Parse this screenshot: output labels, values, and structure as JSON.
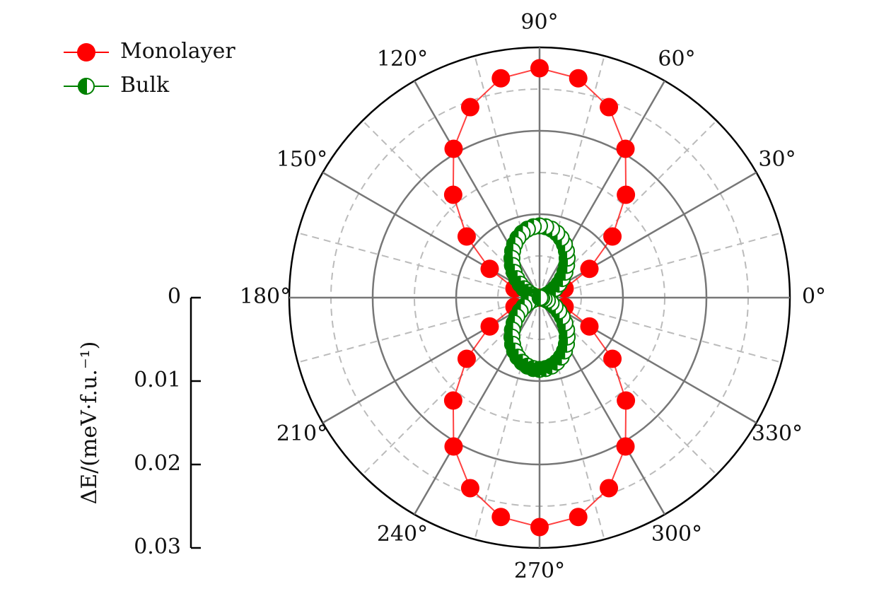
{
  "chart_data": {
    "type": "polar",
    "rlabel": "ΔE/(meV·f.u.⁻¹)",
    "rlim": [
      0,
      0.03
    ],
    "rticks": [
      0,
      0.01,
      0.02,
      0.03
    ],
    "rticks_minor": [
      0.005,
      0.015,
      0.025
    ],
    "thetaticks": [
      {
        "value": 0,
        "label": "0°"
      },
      {
        "value": 30,
        "label": "30°"
      },
      {
        "value": 60,
        "label": "60°"
      },
      {
        "value": 90,
        "label": "90°"
      },
      {
        "value": 120,
        "label": "120°"
      },
      {
        "value": 150,
        "label": "150°"
      },
      {
        "value": 180,
        "label": "180°"
      },
      {
        "value": 210,
        "label": "210°"
      },
      {
        "value": 240,
        "label": "240°"
      },
      {
        "value": 270,
        "label": "270°"
      },
      {
        "value": 300,
        "label": "300°"
      },
      {
        "value": 330,
        "label": "330°"
      }
    ],
    "thetaticks_minor": [
      15,
      45,
      75,
      105,
      135,
      165,
      195,
      225,
      255,
      285,
      315,
      345
    ],
    "grid": true,
    "legend": "top-left",
    "series": [
      {
        "name": "Monolayer",
        "color": "#ff0000",
        "marker": "filled",
        "theta": [
          0,
          10,
          20,
          30,
          40,
          50,
          60,
          70,
          80,
          90,
          100,
          110,
          120,
          130,
          140,
          150,
          160,
          170,
          180,
          190,
          200,
          210,
          220,
          230,
          240,
          250,
          260,
          270,
          280,
          290,
          300,
          310,
          320,
          330,
          340,
          350
        ],
        "values": [
          0,
          0.0008,
          0.0032,
          0.0069,
          0.0114,
          0.0161,
          0.0206,
          0.0243,
          0.0267,
          0.0275,
          0.0267,
          0.0243,
          0.0206,
          0.0161,
          0.0114,
          0.0069,
          0.0032,
          0.0008,
          0,
          0.0008,
          0.0032,
          0.0069,
          0.0114,
          0.0161,
          0.0206,
          0.0243,
          0.0267,
          0.0275,
          0.0267,
          0.0243,
          0.0206,
          0.0161,
          0.0114,
          0.0069,
          0.0032,
          0.0008
        ]
      },
      {
        "name": "Bulk",
        "color": "#008000",
        "marker": "half",
        "theta": [
          0,
          5,
          10,
          15,
          20,
          25,
          30,
          35,
          40,
          45,
          50,
          55,
          60,
          65,
          70,
          75,
          80,
          85,
          90,
          95,
          100,
          105,
          110,
          115,
          120,
          125,
          130,
          135,
          140,
          145,
          150,
          155,
          160,
          165,
          170,
          175,
          180,
          185,
          190,
          195,
          200,
          205,
          210,
          215,
          220,
          225,
          230,
          235,
          240,
          245,
          250,
          255,
          260,
          265,
          270,
          275,
          280,
          285,
          290,
          295,
          300,
          305,
          310,
          315,
          320,
          325,
          330,
          335,
          340,
          345,
          350,
          355
        ],
        "values": [
          0,
          7e-05,
          0.00026,
          0.00058,
          0.00101,
          0.00154,
          0.00215,
          0.00283,
          0.00355,
          0.0043,
          0.00505,
          0.00577,
          0.00645,
          0.00706,
          0.00759,
          0.00802,
          0.00834,
          0.00853,
          0.0086,
          0.00853,
          0.00834,
          0.00802,
          0.00759,
          0.00706,
          0.00645,
          0.00577,
          0.00505,
          0.0043,
          0.00355,
          0.00283,
          0.00215,
          0.00154,
          0.00101,
          0.00058,
          0.00026,
          7e-05,
          0,
          7e-05,
          0.00026,
          0.00058,
          0.00101,
          0.00154,
          0.00215,
          0.00283,
          0.00355,
          0.0043,
          0.00505,
          0.00577,
          0.00645,
          0.00706,
          0.00759,
          0.00802,
          0.00834,
          0.00853,
          0.0086,
          0.00853,
          0.00834,
          0.00802,
          0.00759,
          0.00706,
          0.00645,
          0.00577,
          0.00505,
          0.0043,
          0.00355,
          0.00283,
          0.00215,
          0.00154,
          0.00101,
          0.00058,
          0.00026,
          7e-05
        ]
      }
    ]
  }
}
